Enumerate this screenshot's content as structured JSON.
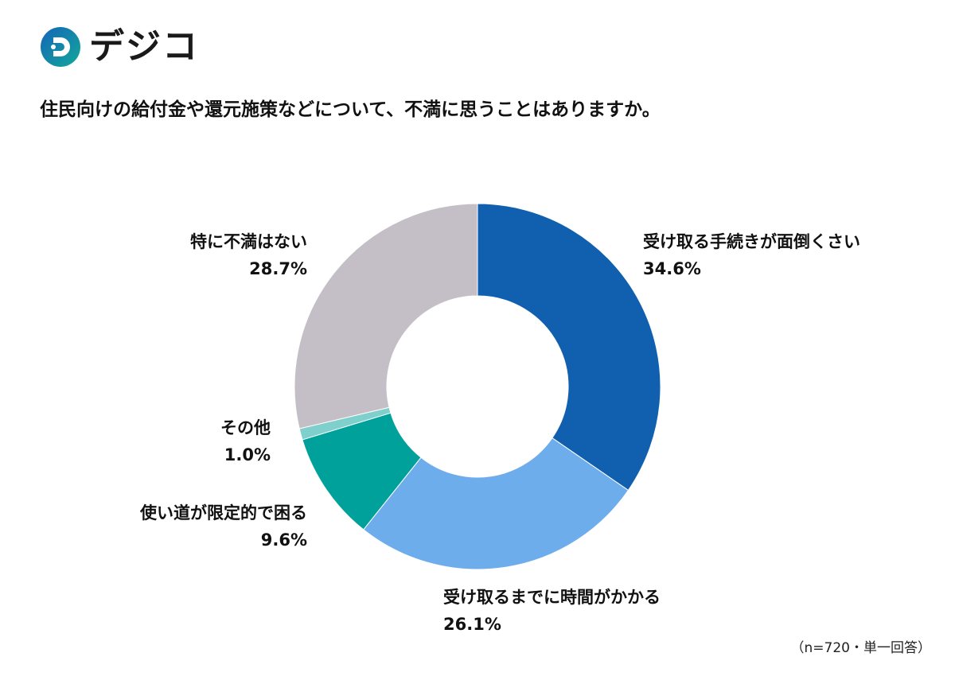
{
  "brand": {
    "name": "デジコ",
    "logo_icon": "d-logo-icon"
  },
  "title": "住民向けの給付金や還元施策などについて、不満に思うことはありますか。",
  "note": "（n=720・単一回答）",
  "labels": [
    {
      "name": "受け取る手続きが面倒くさい",
      "pct": "34.6%"
    },
    {
      "name": "受け取るまでに時間がかかる",
      "pct": "26.1%"
    },
    {
      "name": "使い道が限定的で困る",
      "pct": "9.6%"
    },
    {
      "name": "その他",
      "pct": "1.0%"
    },
    {
      "name": "特に不満はない",
      "pct": "28.7%"
    }
  ],
  "chart_data": {
    "type": "pie",
    "subtype": "donut",
    "title": "住民向けの給付金や還元施策などについて、不満に思うことはありますか。",
    "categories": [
      "受け取る手続きが面倒くさい",
      "受け取るまでに時間がかかる",
      "使い道が限定的で困る",
      "その他",
      "特に不満はない"
    ],
    "values": [
      34.6,
      26.1,
      9.6,
      1.0,
      28.7
    ],
    "colors": [
      "#1160b0",
      "#6eadec",
      "#00a19a",
      "#7fcfcc",
      "#c4bfc6"
    ],
    "start_angle": "12 o'clock",
    "direction": "clockwise",
    "annotation": "（n=720・単一回答）",
    "legend": "none (direct labels)"
  }
}
